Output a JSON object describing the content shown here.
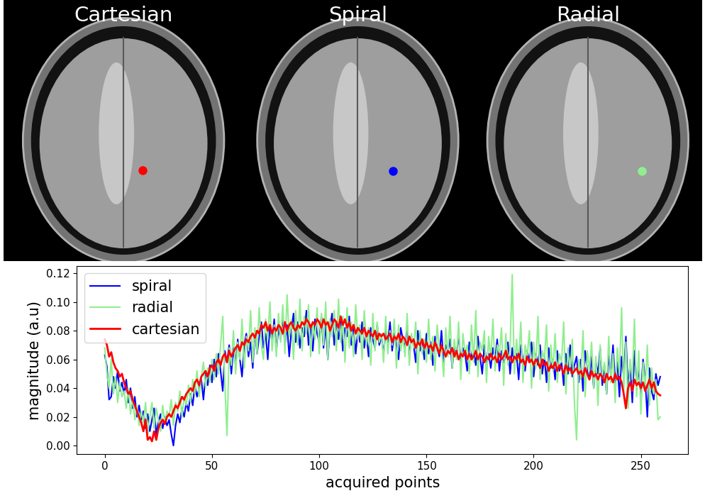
{
  "panels": [
    {
      "title": "Cartesian",
      "color": "red"
    },
    {
      "title": "Spiral",
      "color": "blue"
    },
    {
      "title": "Radial",
      "color": "lightgreen"
    }
  ],
  "chart_data": {
    "type": "line",
    "xlabel": "acquired points",
    "ylabel": "magnitude (a.u)",
    "xlim": [
      -13,
      272
    ],
    "xticks": [
      0,
      50,
      100,
      150,
      200,
      250
    ],
    "ylim": [
      -0.006,
      0.125
    ],
    "yticks": [
      {
        "value": 0,
        "label": "0.00"
      },
      {
        "value": 0.02,
        "label": "0.02"
      },
      {
        "value": 0.04,
        "label": "0.04"
      },
      {
        "value": 0.06,
        "label": "0.06"
      },
      {
        "value": 0.08,
        "label": "0.08"
      },
      {
        "value": 0.1,
        "label": "0.10"
      },
      {
        "value": 0.12,
        "label": "0.12"
      }
    ],
    "legend": "upper left",
    "grid": false,
    "x": [
      0,
      1,
      2,
      3,
      4,
      5,
      6,
      7,
      8,
      9,
      10,
      11,
      12,
      13,
      14,
      15,
      16,
      17,
      18,
      19,
      20,
      21,
      22,
      23,
      24,
      25,
      26,
      27,
      28,
      29,
      30,
      31,
      32,
      33,
      34,
      35,
      36,
      37,
      38,
      39,
      40,
      41,
      42,
      43,
      44,
      45,
      46,
      47,
      48,
      49,
      50,
      51,
      52,
      53,
      54,
      55,
      56,
      57,
      58,
      59,
      60,
      61,
      62,
      63,
      64,
      65,
      66,
      67,
      68,
      69,
      70,
      71,
      72,
      73,
      74,
      75,
      76,
      77,
      78,
      79,
      80,
      81,
      82,
      83,
      84,
      85,
      86,
      87,
      88,
      89,
      90,
      91,
      92,
      93,
      94,
      95,
      96,
      97,
      98,
      99,
      100,
      101,
      102,
      103,
      104,
      105,
      106,
      107,
      108,
      109,
      110,
      111,
      112,
      113,
      114,
      115,
      116,
      117,
      118,
      119,
      120,
      121,
      122,
      123,
      124,
      125,
      126,
      127,
      128,
      129,
      130,
      131,
      132,
      133,
      134,
      135,
      136,
      137,
      138,
      139,
      140,
      141,
      142,
      143,
      144,
      145,
      146,
      147,
      148,
      149,
      150,
      151,
      152,
      153,
      154,
      155,
      156,
      157,
      158,
      159,
      160,
      161,
      162,
      163,
      164,
      165,
      166,
      167,
      168,
      169,
      170,
      171,
      172,
      173,
      174,
      175,
      176,
      177,
      178,
      179,
      180,
      181,
      182,
      183,
      184,
      185,
      186,
      187,
      188,
      189,
      190,
      191,
      192,
      193,
      194,
      195,
      196,
      197,
      198,
      199,
      200,
      201,
      202,
      203,
      204,
      205,
      206,
      207,
      208,
      209,
      210,
      211,
      212,
      213,
      214,
      215,
      216,
      217,
      218,
      219,
      220,
      221,
      222,
      223,
      224,
      225,
      226,
      227,
      228,
      229,
      230,
      231,
      232,
      233,
      234,
      235,
      236,
      237,
      238,
      239,
      240,
      241,
      242,
      243,
      244,
      245,
      246,
      247,
      248,
      249,
      250,
      251,
      252,
      253,
      254,
      255,
      256,
      257,
      258,
      259
    ],
    "series": [
      {
        "name": "spiral",
        "color": "blue",
        "values": [
          0.063,
          0.055,
          0.032,
          0.034,
          0.048,
          0.04,
          0.052,
          0.038,
          0.044,
          0.036,
          0.046,
          0.03,
          0.04,
          0.026,
          0.034,
          0.02,
          0.028,
          0.018,
          0.024,
          0.012,
          0.022,
          0.01,
          0.018,
          0.026,
          0.008,
          0.016,
          0.022,
          0.012,
          0.02,
          0.014,
          0.018,
          0.008,
          0.0,
          0.014,
          0.022,
          0.016,
          0.026,
          0.02,
          0.03,
          0.024,
          0.036,
          0.028,
          0.042,
          0.034,
          0.04,
          0.046,
          0.032,
          0.05,
          0.042,
          0.056,
          0.044,
          0.06,
          0.048,
          0.064,
          0.052,
          0.038,
          0.066,
          0.058,
          0.07,
          0.05,
          0.068,
          0.056,
          0.074,
          0.06,
          0.048,
          0.07,
          0.078,
          0.062,
          0.072,
          0.054,
          0.08,
          0.064,
          0.076,
          0.086,
          0.068,
          0.078,
          0.06,
          0.084,
          0.072,
          0.088,
          0.066,
          0.082,
          0.074,
          0.09,
          0.07,
          0.084,
          0.062,
          0.08,
          0.092,
          0.072,
          0.086,
          0.068,
          0.082,
          0.076,
          0.094,
          0.07,
          0.084,
          0.066,
          0.088,
          0.078,
          0.072,
          0.09,
          0.068,
          0.084,
          0.06,
          0.082,
          0.092,
          0.07,
          0.086,
          0.074,
          0.088,
          0.066,
          0.082,
          0.076,
          0.09,
          0.07,
          0.084,
          0.064,
          0.08,
          0.072,
          0.086,
          0.068,
          0.078,
          0.062,
          0.082,
          0.074,
          0.068,
          0.084,
          0.07,
          0.076,
          0.064,
          0.08,
          0.072,
          0.086,
          0.066,
          0.078,
          0.07,
          0.06,
          0.082,
          0.074,
          0.068,
          0.084,
          0.062,
          0.076,
          0.07,
          0.058,
          0.08,
          0.066,
          0.074,
          0.06,
          0.078,
          0.064,
          0.072,
          0.056,
          0.076,
          0.068,
          0.062,
          0.08,
          0.058,
          0.07,
          0.066,
          0.074,
          0.054,
          0.07,
          0.062,
          0.078,
          0.058,
          0.068,
          0.064,
          0.052,
          0.072,
          0.06,
          0.066,
          0.056,
          0.076,
          0.062,
          0.05,
          0.07,
          0.058,
          0.064,
          0.054,
          0.068,
          0.06,
          0.074,
          0.052,
          0.066,
          0.058,
          0.062,
          0.072,
          0.05,
          0.068,
          0.056,
          0.064,
          0.046,
          0.07,
          0.06,
          0.052,
          0.066,
          0.058,
          0.072,
          0.048,
          0.064,
          0.056,
          0.07,
          0.05,
          0.062,
          0.044,
          0.068,
          0.054,
          0.06,
          0.046,
          0.066,
          0.052,
          0.058,
          0.042,
          0.064,
          0.05,
          0.07,
          0.048,
          0.056,
          0.062,
          0.044,
          0.06,
          0.038,
          0.066,
          0.052,
          0.046,
          0.062,
          0.04,
          0.058,
          0.05,
          0.068,
          0.042,
          0.056,
          0.036,
          0.064,
          0.048,
          0.07,
          0.044,
          0.058,
          0.034,
          0.062,
          0.048,
          0.076,
          0.04,
          0.056,
          0.03,
          0.066,
          0.044,
          0.052,
          0.036,
          0.06,
          0.046,
          0.02,
          0.054,
          0.038,
          0.032,
          0.05,
          0.042,
          0.048
        ]
      },
      {
        "name": "radial",
        "color": "lightgreen",
        "values": [
          0.068,
          0.05,
          0.04,
          0.06,
          0.036,
          0.048,
          0.03,
          0.044,
          0.034,
          0.038,
          0.026,
          0.04,
          0.022,
          0.034,
          0.018,
          0.028,
          0.014,
          0.024,
          0.016,
          0.03,
          0.008,
          0.02,
          0.03,
          0.012,
          0.026,
          0.018,
          0.01,
          0.028,
          0.016,
          0.024,
          0.02,
          0.032,
          0.014,
          0.03,
          0.024,
          0.038,
          0.02,
          0.034,
          0.028,
          0.042,
          0.03,
          0.046,
          0.036,
          0.052,
          0.034,
          0.048,
          0.058,
          0.04,
          0.054,
          0.044,
          0.06,
          0.046,
          0.064,
          0.05,
          0.07,
          0.09,
          0.042,
          0.007,
          0.068,
          0.056,
          0.08,
          0.05,
          0.072,
          0.06,
          0.088,
          0.054,
          0.076,
          0.066,
          0.094,
          0.058,
          0.082,
          0.064,
          0.096,
          0.07,
          0.06,
          0.088,
          0.074,
          0.1,
          0.066,
          0.084,
          0.062,
          0.092,
          0.072,
          0.098,
          0.064,
          0.105,
          0.076,
          0.088,
          0.06,
          0.094,
          0.07,
          0.102,
          0.066,
          0.09,
          0.078,
          0.098,
          0.062,
          0.086,
          0.074,
          0.096,
          0.064,
          0.092,
          0.07,
          0.1,
          0.06,
          0.088,
          0.076,
          0.094,
          0.066,
          0.102,
          0.072,
          0.09,
          0.058,
          0.096,
          0.068,
          0.086,
          0.062,
          0.098,
          0.074,
          0.084,
          0.06,
          0.094,
          0.07,
          0.082,
          0.056,
          0.092,
          0.066,
          0.086,
          0.072,
          0.078,
          0.058,
          0.09,
          0.064,
          0.08,
          0.07,
          0.088,
          0.054,
          0.084,
          0.066,
          0.076,
          0.062,
          0.092,
          0.056,
          0.078,
          0.068,
          0.086,
          0.05,
          0.08,
          0.064,
          0.074,
          0.058,
          0.088,
          0.06,
          0.076,
          0.052,
          0.084,
          0.066,
          0.07,
          0.048,
          0.082,
          0.062,
          0.09,
          0.054,
          0.074,
          0.06,
          0.086,
          0.046,
          0.078,
          0.064,
          0.07,
          0.05,
          0.084,
          0.058,
          0.094,
          0.048,
          0.072,
          0.066,
          0.08,
          0.044,
          0.076,
          0.06,
          0.088,
          0.052,
          0.07,
          0.064,
          0.082,
          0.042,
          0.078,
          0.056,
          0.068,
          0.119,
          0.05,
          0.074,
          0.058,
          0.086,
          0.044,
          0.07,
          0.062,
          0.08,
          0.04,
          0.072,
          0.054,
          0.09,
          0.046,
          0.066,
          0.06,
          0.084,
          0.038,
          0.07,
          0.052,
          0.078,
          0.044,
          0.064,
          0.058,
          0.086,
          0.036,
          0.068,
          0.05,
          0.074,
          0.03,
          0.004,
          0.06,
          0.046,
          0.08,
          0.034,
          0.066,
          0.052,
          0.072,
          0.04,
          0.062,
          0.028,
          0.07,
          0.048,
          0.058,
          0.036,
          0.076,
          0.044,
          0.064,
          0.03,
          0.068,
          0.05,
          0.096,
          0.038,
          0.072,
          0.026,
          0.06,
          0.046,
          0.088,
          0.034,
          0.066,
          0.022,
          0.058,
          0.04,
          0.07,
          0.028,
          0.054,
          0.036,
          0.046,
          0.018,
          0.02
        ]
      },
      {
        "name": "cartesian",
        "color": "red",
        "values": [
          0.074,
          0.07,
          0.062,
          0.065,
          0.058,
          0.054,
          0.052,
          0.048,
          0.05,
          0.044,
          0.04,
          0.036,
          0.038,
          0.032,
          0.028,
          0.024,
          0.02,
          0.016,
          0.01,
          0.018,
          0.004,
          0.006,
          0.003,
          0.01,
          0.004,
          0.012,
          0.016,
          0.018,
          0.015,
          0.02,
          0.022,
          0.02,
          0.024,
          0.028,
          0.026,
          0.03,
          0.034,
          0.032,
          0.036,
          0.038,
          0.04,
          0.038,
          0.044,
          0.046,
          0.042,
          0.048,
          0.05,
          0.052,
          0.048,
          0.054,
          0.056,
          0.052,
          0.058,
          0.06,
          0.056,
          0.062,
          0.064,
          0.058,
          0.066,
          0.062,
          0.065,
          0.068,
          0.07,
          0.066,
          0.072,
          0.07,
          0.074,
          0.072,
          0.076,
          0.078,
          0.075,
          0.08,
          0.078,
          0.084,
          0.082,
          0.086,
          0.08,
          0.084,
          0.078,
          0.082,
          0.08,
          0.084,
          0.082,
          0.078,
          0.086,
          0.08,
          0.084,
          0.086,
          0.082,
          0.08,
          0.084,
          0.082,
          0.086,
          0.084,
          0.088,
          0.086,
          0.082,
          0.086,
          0.084,
          0.088,
          0.086,
          0.082,
          0.088,
          0.084,
          0.086,
          0.08,
          0.084,
          0.088,
          0.086,
          0.082,
          0.09,
          0.084,
          0.088,
          0.082,
          0.086,
          0.08,
          0.084,
          0.078,
          0.082,
          0.08,
          0.078,
          0.082,
          0.076,
          0.08,
          0.078,
          0.076,
          0.08,
          0.074,
          0.078,
          0.076,
          0.078,
          0.074,
          0.076,
          0.078,
          0.072,
          0.076,
          0.074,
          0.078,
          0.072,
          0.076,
          0.074,
          0.07,
          0.076,
          0.072,
          0.074,
          0.068,
          0.072,
          0.07,
          0.074,
          0.068,
          0.072,
          0.068,
          0.07,
          0.066,
          0.072,
          0.068,
          0.064,
          0.07,
          0.066,
          0.062,
          0.066,
          0.064,
          0.068,
          0.062,
          0.066,
          0.06,
          0.064,
          0.062,
          0.066,
          0.06,
          0.064,
          0.06,
          0.062,
          0.066,
          0.06,
          0.064,
          0.062,
          0.058,
          0.062,
          0.06,
          0.064,
          0.06,
          0.062,
          0.058,
          0.064,
          0.06,
          0.062,
          0.066,
          0.06,
          0.062,
          0.058,
          0.062,
          0.06,
          0.064,
          0.058,
          0.06,
          0.056,
          0.062,
          0.058,
          0.06,
          0.056,
          0.06,
          0.058,
          0.054,
          0.06,
          0.056,
          0.058,
          0.052,
          0.056,
          0.054,
          0.058,
          0.052,
          0.056,
          0.054,
          0.05,
          0.056,
          0.052,
          0.054,
          0.05,
          0.052,
          0.054,
          0.05,
          0.052,
          0.048,
          0.054,
          0.05,
          0.046,
          0.052,
          0.048,
          0.05,
          0.046,
          0.05,
          0.048,
          0.044,
          0.05,
          0.046,
          0.048,
          0.044,
          0.05,
          0.046,
          0.048,
          0.044,
          0.036,
          0.026,
          0.04,
          0.044,
          0.038,
          0.046,
          0.042,
          0.044,
          0.04,
          0.044,
          0.038,
          0.042,
          0.046,
          0.04,
          0.044,
          0.038,
          0.036,
          0.035
        ]
      }
    ]
  }
}
